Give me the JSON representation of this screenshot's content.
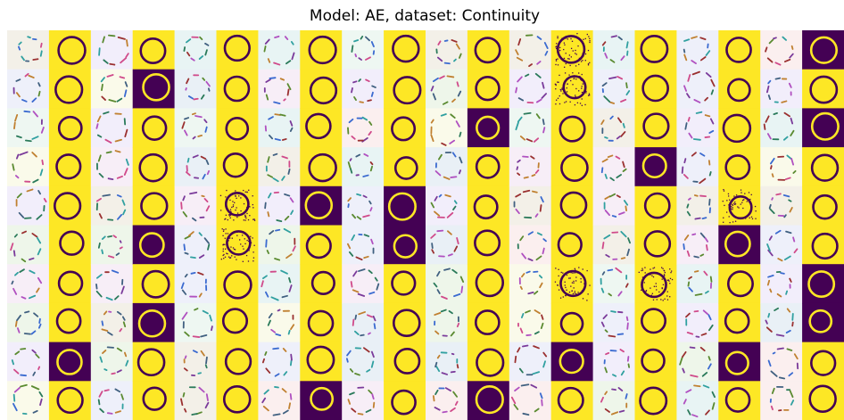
{
  "title": "Model: AE, dataset: Continuity"
}
